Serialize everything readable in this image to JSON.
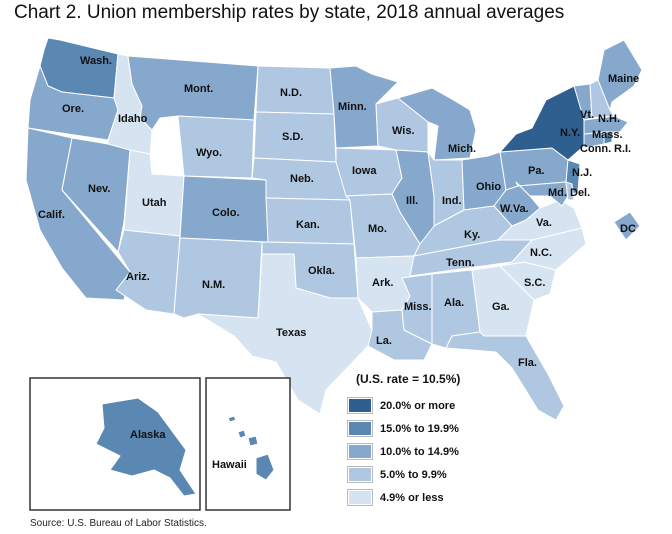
{
  "title": "Chart 2. Union membership rates by state, 2018 annual averages",
  "source": "Source: U.S. Bureau of Labor Statistics.",
  "legend": {
    "title": "(U.S. rate = 10.5%)",
    "items": [
      {
        "label": "20.0% or more",
        "color": "#2e5f8e"
      },
      {
        "label": "15.0% to 19.9%",
        "color": "#5b87b3"
      },
      {
        "label": "10.0% to 14.9%",
        "color": "#86a8cc"
      },
      {
        "label": "5.0% to 9.9%",
        "color": "#afc7e0"
      },
      {
        "label": "4.9% or less",
        "color": "#d6e4f1"
      }
    ]
  },
  "colors": {
    "c1": "#2e5f8e",
    "c2": "#5b87b3",
    "c3": "#86a8cc",
    "c4": "#afc7e0",
    "c5": "#d6e4f1"
  },
  "states": {
    "wa": {
      "label": "Wash.",
      "class": "c2"
    },
    "or": {
      "label": "Ore.",
      "class": "c3"
    },
    "ca": {
      "label": "Calif.",
      "class": "c3"
    },
    "id": {
      "label": "Idaho",
      "class": "c5"
    },
    "nv": {
      "label": "Nev.",
      "class": "c3"
    },
    "ut": {
      "label": "Utah",
      "class": "c5"
    },
    "az": {
      "label": "Ariz.",
      "class": "c4"
    },
    "mt": {
      "label": "Mont.",
      "class": "c3"
    },
    "wy": {
      "label": "Wyo.",
      "class": "c4"
    },
    "co": {
      "label": "Colo.",
      "class": "c3"
    },
    "nm": {
      "label": "N.M.",
      "class": "c4"
    },
    "nd": {
      "label": "N.D.",
      "class": "c4"
    },
    "sd": {
      "label": "S.D.",
      "class": "c4"
    },
    "ne": {
      "label": "Neb.",
      "class": "c4"
    },
    "ks": {
      "label": "Kan.",
      "class": "c4"
    },
    "ok": {
      "label": "Okla.",
      "class": "c4"
    },
    "tx": {
      "label": "Texas",
      "class": "c5"
    },
    "mn": {
      "label": "Minn.",
      "class": "c3"
    },
    "ia": {
      "label": "Iowa",
      "class": "c4"
    },
    "mo": {
      "label": "Mo.",
      "class": "c4"
    },
    "ar": {
      "label": "Ark.",
      "class": "c5"
    },
    "la": {
      "label": "La.",
      "class": "c4"
    },
    "wi": {
      "label": "Wis.",
      "class": "c4"
    },
    "il": {
      "label": "Ill.",
      "class": "c3"
    },
    "mi": {
      "label": "Mich.",
      "class": "c3"
    },
    "in": {
      "label": "Ind.",
      "class": "c4"
    },
    "oh": {
      "label": "Ohio",
      "class": "c3"
    },
    "ky": {
      "label": "Ky.",
      "class": "c4"
    },
    "tn": {
      "label": "Tenn.",
      "class": "c4"
    },
    "ms": {
      "label": "Miss.",
      "class": "c4"
    },
    "al": {
      "label": "Ala.",
      "class": "c4"
    },
    "ga": {
      "label": "Ga.",
      "class": "c5"
    },
    "fl": {
      "label": "Fla.",
      "class": "c4"
    },
    "sc": {
      "label": "S.C.",
      "class": "c5"
    },
    "nc": {
      "label": "N.C.",
      "class": "c5"
    },
    "va": {
      "label": "Va.",
      "class": "c5"
    },
    "wv": {
      "label": "W.Va.",
      "class": "c3"
    },
    "pa": {
      "label": "Pa.",
      "class": "c3"
    },
    "ny": {
      "label": "N.Y.",
      "class": "c1"
    },
    "nj": {
      "label": "N.J.",
      "class": "c2"
    },
    "md": {
      "label": "Md.",
      "class": "c3"
    },
    "de": {
      "label": "Del.",
      "class": "c4"
    },
    "ct": {
      "label": "Conn.",
      "class": "c3"
    },
    "ri": {
      "label": "R.I.",
      "class": "c2"
    },
    "ma": {
      "label": "Mass.",
      "class": "c3"
    },
    "vt": {
      "label": "Vt.",
      "class": "c3"
    },
    "nh": {
      "label": "N.H.",
      "class": "c4"
    },
    "me": {
      "label": "Maine",
      "class": "c3"
    },
    "dc": {
      "label": "DC",
      "class": "c3"
    },
    "ak": {
      "label": "Alaska",
      "class": "c2"
    },
    "hi": {
      "label": "Hawaii",
      "class": "c2"
    }
  }
}
